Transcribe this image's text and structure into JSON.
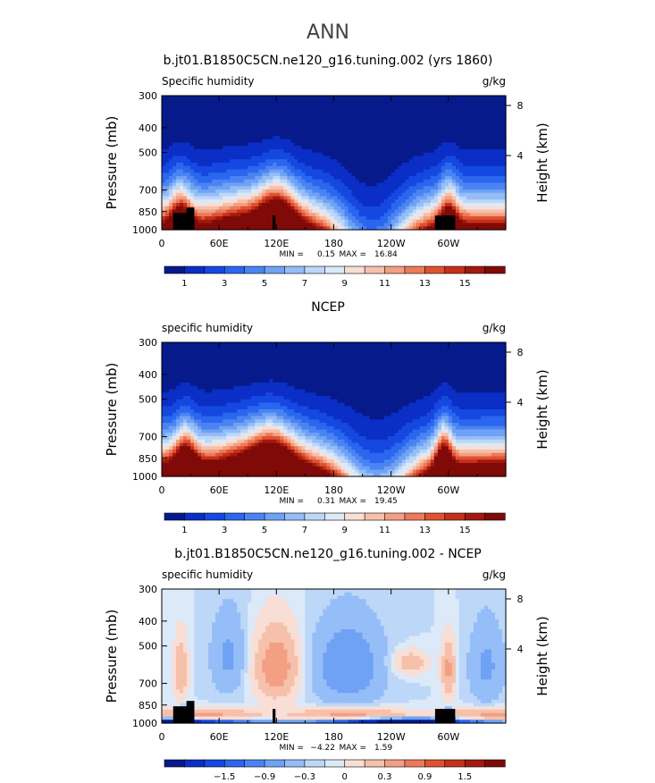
{
  "page_title": "ANN",
  "chart_data": [
    {
      "type": "heatmap",
      "title": "b.jt01.B1850C5CN.ne120_g16.tuning.002 (yrs 1860)",
      "subtitle_left": "Specific humidity",
      "units": "g/kg",
      "xlabel": "",
      "ylabel": "Pressure (mb)",
      "ylabel_right": "Height (km)",
      "x_ticks": [
        "0",
        "60E",
        "120E",
        "180",
        "120W",
        "60W"
      ],
      "y_ticks": [
        "300",
        "400",
        "500",
        "700",
        "850",
        "1000"
      ],
      "y_right_ticks": [
        "8",
        "4"
      ],
      "xlim": [
        0,
        360
      ],
      "ylim": [
        1000,
        300
      ],
      "stats": {
        "min_label": "MIN =",
        "min": "0.15",
        "max_label": "MAX =",
        "max": "16.84"
      },
      "colorbar_labels": [
        "1",
        "3",
        "5",
        "7",
        "9",
        "11",
        "13",
        "15"
      ],
      "colorbar_colors": [
        "#061a8c",
        "#0a2ec6",
        "#1548e0",
        "#2b66ee",
        "#4b84f2",
        "#6fa2f5",
        "#95bdf7",
        "#bcd7f8",
        "#dce9f8",
        "#f8ded4",
        "#f6c0ab",
        "#f29f82",
        "#ec7a5a",
        "#e0522f",
        "#c4301a",
        "#a3190e",
        "#800a08"
      ]
    },
    {
      "type": "heatmap",
      "title": "NCEP",
      "subtitle_left": "specific humidity",
      "units": "g/kg",
      "xlabel": "",
      "ylabel": "Pressure (mb)",
      "ylabel_right": "Height (km)",
      "x_ticks": [
        "0",
        "60E",
        "120E",
        "180",
        "120W",
        "60W"
      ],
      "y_ticks": [
        "300",
        "400",
        "500",
        "700",
        "850",
        "1000"
      ],
      "y_right_ticks": [
        "8",
        "4"
      ],
      "xlim": [
        0,
        360
      ],
      "ylim": [
        1000,
        300
      ],
      "stats": {
        "min_label": "MIN =",
        "min": "0.31",
        "max_label": "MAX =",
        "max": "19.45"
      },
      "colorbar_labels": [
        "1",
        "3",
        "5",
        "7",
        "9",
        "11",
        "13",
        "15"
      ],
      "colorbar_colors": [
        "#061a8c",
        "#0a2ec6",
        "#1548e0",
        "#2b66ee",
        "#4b84f2",
        "#6fa2f5",
        "#95bdf7",
        "#bcd7f8",
        "#dce9f8",
        "#f8ded4",
        "#f6c0ab",
        "#f29f82",
        "#ec7a5a",
        "#e0522f",
        "#c4301a",
        "#a3190e",
        "#800a08"
      ]
    },
    {
      "type": "heatmap",
      "title": "b.jt01.B1850C5CN.ne120_g16.tuning.002 - NCEP",
      "subtitle_left": "specific humidity",
      "units": "g/kg",
      "xlabel": "",
      "ylabel": "Pressure (mb)",
      "ylabel_right": "Height (km)",
      "x_ticks": [
        "0",
        "60E",
        "120E",
        "180",
        "120W",
        "60W"
      ],
      "y_ticks": [
        "300",
        "400",
        "500",
        "700",
        "850",
        "1000"
      ],
      "y_right_ticks": [
        "8",
        "4"
      ],
      "xlim": [
        0,
        360
      ],
      "ylim": [
        1000,
        300
      ],
      "stats": {
        "min_label": "MIN =",
        "min": "−4.22",
        "max_label": "MAX =",
        "max": "1.59"
      },
      "colorbar_labels": [
        "−1.5",
        "−0.9",
        "−0.3",
        "0",
        "0.3",
        "0.9",
        "1.5"
      ],
      "colorbar_colors": [
        "#061a8c",
        "#0a2ec6",
        "#1548e0",
        "#2b66ee",
        "#4b84f2",
        "#6fa2f5",
        "#95bdf7",
        "#bcd7f8",
        "#dce9f8",
        "#f8ded4",
        "#f6c0ab",
        "#f29f82",
        "#ec7a5a",
        "#e0522f",
        "#c4301a",
        "#a3190e",
        "#800a08"
      ]
    }
  ]
}
